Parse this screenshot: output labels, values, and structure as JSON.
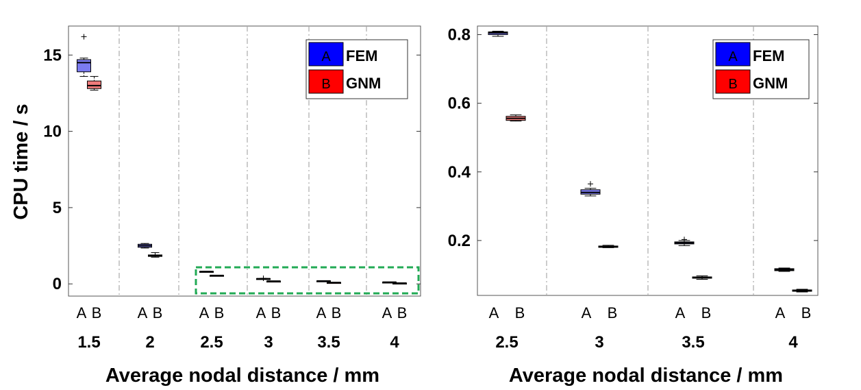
{
  "colors": {
    "fem": "#0000ff",
    "gnm": "#ff0000",
    "fem_box": "#7b7bf0",
    "gnm_box": "#f07b7b",
    "highlight": "#22aa55"
  },
  "chart_data": [
    {
      "type": "box",
      "xlabel": "Average nodal distance / mm",
      "ylabel": "CPU time / s",
      "ylim": [
        -0.8,
        16.9
      ],
      "yticks": [
        0,
        5,
        10,
        15
      ],
      "ytick_labels": [
        "0",
        "5",
        "10",
        "15"
      ],
      "categories": [
        "1.5",
        "2",
        "2.5",
        "3",
        "3.5",
        "4"
      ],
      "sub_labels": [
        "A",
        "B"
      ],
      "legend": {
        "position": "top-right",
        "entries": [
          {
            "key": "A",
            "name": "FEM"
          },
          {
            "key": "B",
            "name": "GNM"
          }
        ]
      },
      "highlight": {
        "style": "dashed box",
        "categories": [
          "2.5",
          "3",
          "3.5",
          "4"
        ]
      },
      "series": [
        {
          "name": "FEM",
          "boxes": [
            {
              "q1": 13.9,
              "median": 14.5,
              "q3": 14.7,
              "whisker_low": 13.6,
              "whisker_high": 14.8,
              "outliers": [
                16.2
              ]
            },
            {
              "q1": 2.4,
              "median": 2.5,
              "q3": 2.6,
              "whisker_low": 2.35,
              "whisker_high": 2.65,
              "outliers": []
            },
            {
              "q1": 0.8,
              "median": 0.81,
              "q3": 0.82,
              "whisker_low": 0.79,
              "whisker_high": 0.83,
              "outliers": []
            },
            {
              "q1": 0.33,
              "median": 0.34,
              "q3": 0.35,
              "whisker_low": 0.33,
              "whisker_high": 0.36,
              "outliers": [
                0.37
              ]
            },
            {
              "q1": 0.19,
              "median": 0.195,
              "q3": 0.2,
              "whisker_low": 0.18,
              "whisker_high": 0.21,
              "outliers": []
            },
            {
              "q1": 0.11,
              "median": 0.115,
              "q3": 0.12,
              "whisker_low": 0.11,
              "whisker_high": 0.12,
              "outliers": []
            }
          ]
        },
        {
          "name": "GNM",
          "boxes": [
            {
              "q1": 12.8,
              "median": 13.0,
              "q3": 13.3,
              "whisker_low": 12.7,
              "whisker_high": 13.6,
              "outliers": []
            },
            {
              "q1": 1.8,
              "median": 1.85,
              "q3": 1.9,
              "whisker_low": 1.75,
              "whisker_high": 2.05,
              "outliers": []
            },
            {
              "q1": 0.55,
              "median": 0.555,
              "q3": 0.56,
              "whisker_low": 0.55,
              "whisker_high": 0.565,
              "outliers": []
            },
            {
              "q1": 0.18,
              "median": 0.182,
              "q3": 0.184,
              "whisker_low": 0.18,
              "whisker_high": 0.185,
              "outliers": []
            },
            {
              "q1": 0.09,
              "median": 0.092,
              "q3": 0.094,
              "whisker_low": 0.088,
              "whisker_high": 0.096,
              "outliers": []
            },
            {
              "q1": 0.05,
              "median": 0.052,
              "q3": 0.054,
              "whisker_low": 0.05,
              "whisker_high": 0.055,
              "outliers": []
            }
          ]
        }
      ]
    },
    {
      "type": "box",
      "xlabel": "Average nodal distance / mm",
      "ylabel": "",
      "ylim": [
        0.04,
        0.825
      ],
      "yticks": [
        0.2,
        0.4,
        0.6,
        0.8
      ],
      "ytick_labels": [
        "0.2",
        "0.4",
        "0.6",
        "0.8"
      ],
      "categories": [
        "2.5",
        "3",
        "3.5",
        "4"
      ],
      "sub_labels": [
        "A",
        "B"
      ],
      "legend": {
        "position": "top-right",
        "entries": [
          {
            "key": "A",
            "name": "FEM"
          },
          {
            "key": "B",
            "name": "GNM"
          }
        ]
      },
      "series": [
        {
          "name": "FEM",
          "boxes": [
            {
              "q1": 0.8,
              "median": 0.805,
              "q3": 0.808,
              "whisker_low": 0.795,
              "whisker_high": 0.81,
              "outliers": []
            },
            {
              "q1": 0.335,
              "median": 0.34,
              "q3": 0.348,
              "whisker_low": 0.33,
              "whisker_high": 0.352,
              "outliers": [
                0.365
              ]
            },
            {
              "q1": 0.19,
              "median": 0.193,
              "q3": 0.196,
              "whisker_low": 0.185,
              "whisker_high": 0.2,
              "outliers": [
                0.203
              ]
            },
            {
              "q1": 0.112,
              "median": 0.115,
              "q3": 0.118,
              "whisker_low": 0.11,
              "whisker_high": 0.12,
              "outliers": []
            }
          ]
        },
        {
          "name": "GNM",
          "boxes": [
            {
              "q1": 0.55,
              "median": 0.556,
              "q3": 0.562,
              "whisker_low": 0.548,
              "whisker_high": 0.566,
              "outliers": []
            },
            {
              "q1": 0.18,
              "median": 0.182,
              "q3": 0.184,
              "whisker_low": 0.179,
              "whisker_high": 0.186,
              "outliers": []
            },
            {
              "q1": 0.09,
              "median": 0.092,
              "q3": 0.094,
              "whisker_low": 0.087,
              "whisker_high": 0.097,
              "outliers": []
            },
            {
              "q1": 0.052,
              "median": 0.054,
              "q3": 0.056,
              "whisker_low": 0.05,
              "whisker_high": 0.058,
              "outliers": []
            }
          ]
        }
      ]
    }
  ]
}
